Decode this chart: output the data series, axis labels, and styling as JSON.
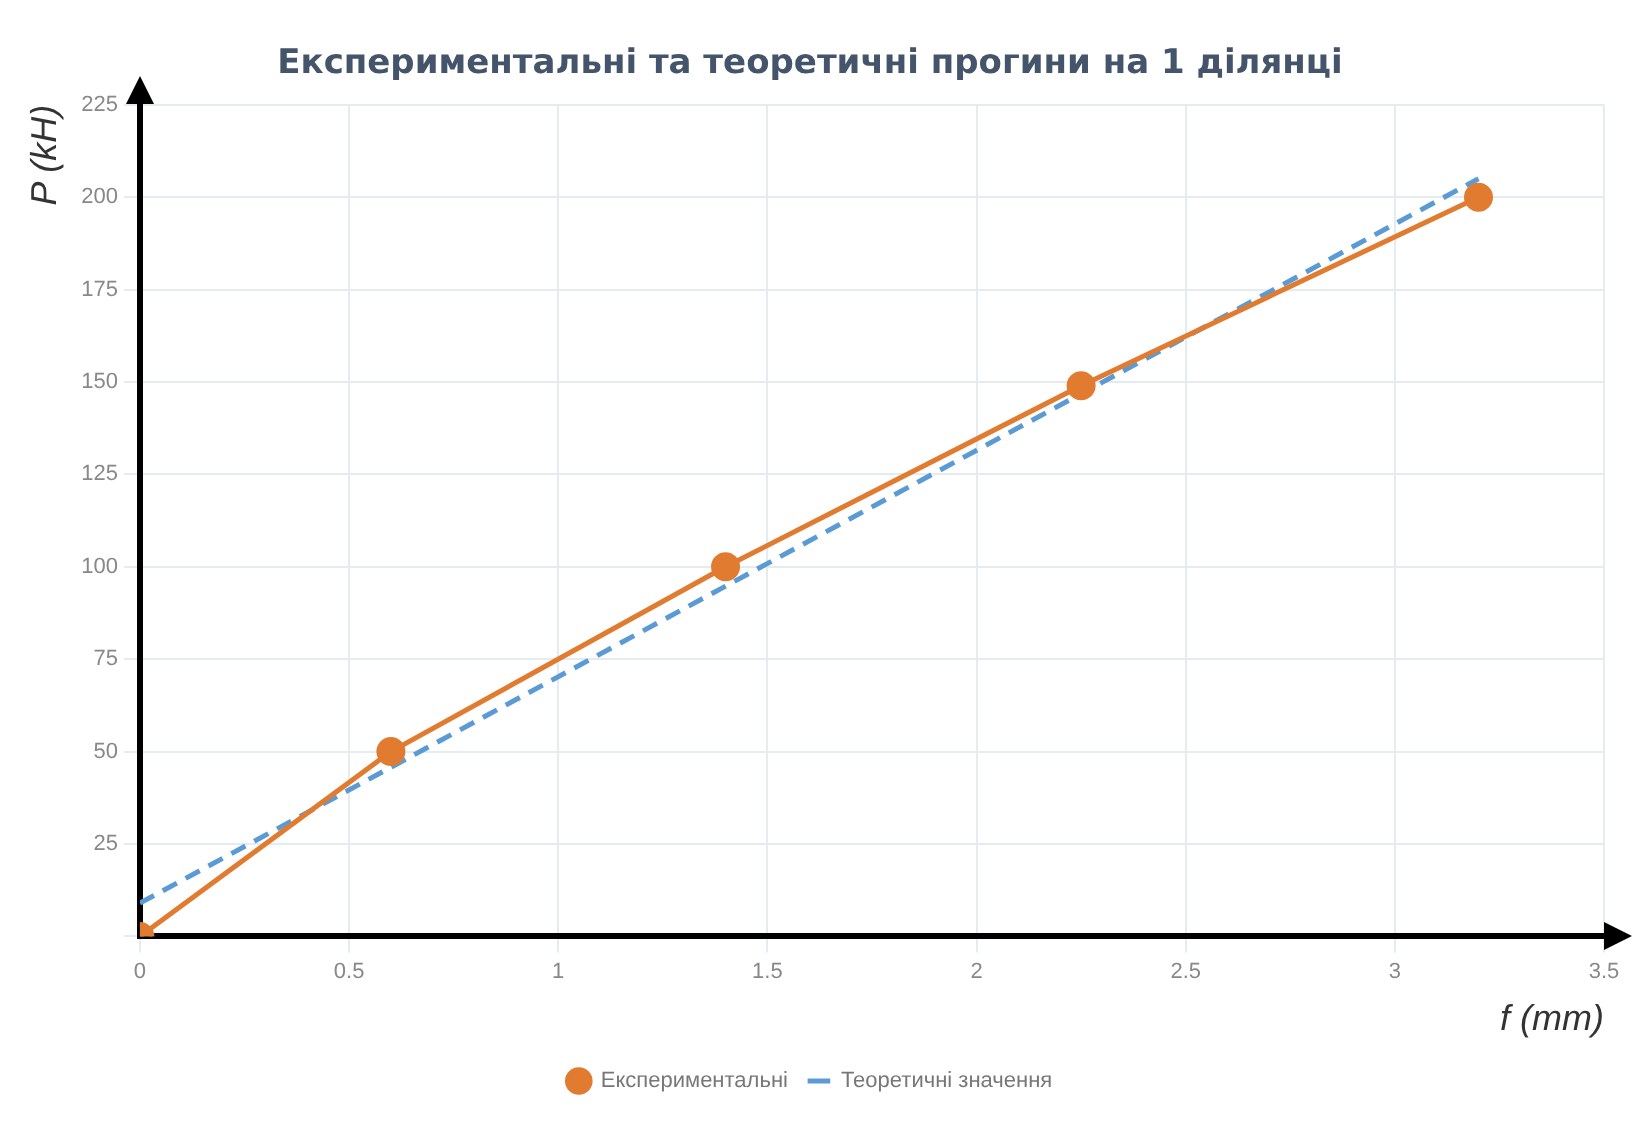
{
  "chart_data": {
    "type": "line",
    "title": "Експериментальні та теоретичні прогини на 1 ділянці",
    "xlabel": "f (mm)",
    "ylabel": "P (kH)",
    "series": [
      {
        "name": "Експериментальні",
        "color": "#e07b30",
        "x": [
          0,
          0.6,
          1.4,
          2.25,
          3.2
        ],
        "values": [
          0,
          50,
          100,
          149,
          200
        ],
        "marker": "circle",
        "line_style": "solid"
      },
      {
        "name": "Теоретичні значення",
        "color": "#5b9bd5",
        "x": [
          0,
          3.2
        ],
        "values": [
          9,
          205
        ],
        "marker": "none",
        "line_style": "dashed"
      }
    ],
    "xlim": [
      0,
      3.5
    ],
    "xticks": [
      0,
      0.5,
      1,
      1.5,
      2,
      2.5,
      3,
      3.5
    ],
    "ylim": [
      0,
      225
    ],
    "yticks": [
      {
        "value": 0,
        "label": null
      },
      25,
      50,
      75,
      100,
      125,
      150,
      175,
      200,
      225
    ],
    "grid": true,
    "legend": "bottom"
  }
}
